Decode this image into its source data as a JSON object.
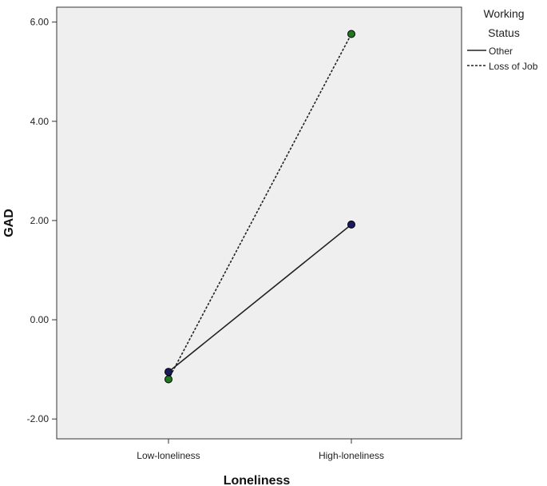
{
  "chart_data": {
    "type": "line",
    "xlabel": "Loneliness",
    "ylabel": "GAD",
    "categories": [
      "Low-loneliness",
      "High-loneliness"
    ],
    "y_ticks": [
      "-2.00",
      "0.00",
      "2.00",
      "4.00",
      "6.00"
    ],
    "ylim": [
      -2.4,
      6.3
    ],
    "grid": false,
    "legend": {
      "title_lines": [
        "Working",
        "Status"
      ],
      "placement": "right"
    },
    "series": [
      {
        "name": "Other",
        "values": [
          -1.05,
          1.92
        ],
        "line_style": "solid",
        "line_color": "#222222",
        "marker_color": "#1a1a5e"
      },
      {
        "name": "Loss of Job",
        "values": [
          -1.2,
          5.76
        ],
        "line_style": "dashed",
        "line_color": "#222222",
        "marker_color": "#1f7a1f"
      }
    ],
    "colors": {
      "plot_background": "#efefef",
      "axis": "#333333"
    }
  }
}
